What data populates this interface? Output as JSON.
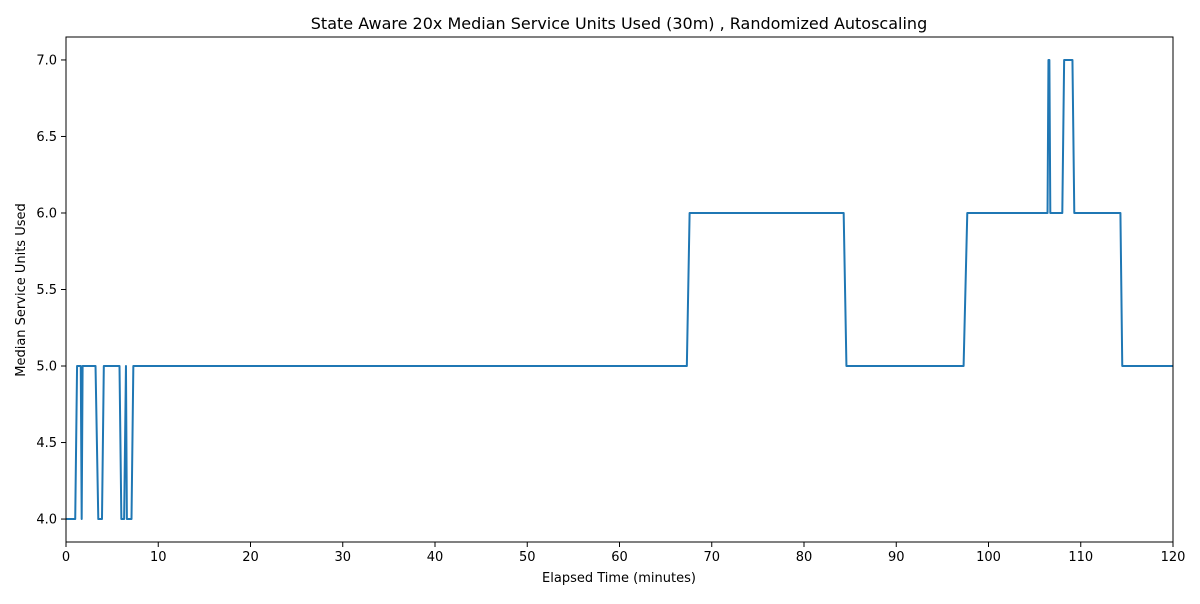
{
  "chart_data": {
    "type": "line",
    "title": "State Aware 20x Median Service Units Used (30m) , Randomized Autoscaling",
    "xlabel": "Elapsed Time (minutes)",
    "ylabel": "Median Service Units Used",
    "xlim": [
      0,
      120
    ],
    "ylim": [
      3.85,
      7.15
    ],
    "xticks": [
      0,
      10,
      20,
      30,
      40,
      50,
      60,
      70,
      80,
      90,
      100,
      110,
      120
    ],
    "yticks": [
      4.0,
      4.5,
      5.0,
      5.5,
      6.0,
      6.5,
      7.0
    ],
    "xtick_labels": [
      "0",
      "10",
      "20",
      "30",
      "40",
      "50",
      "60",
      "70",
      "80",
      "90",
      "100",
      "110",
      "120"
    ],
    "ytick_labels": [
      "4.0",
      "4.5",
      "5.0",
      "5.5",
      "6.0",
      "6.5",
      "7.0"
    ],
    "grid": false,
    "legend": "none",
    "color": "#1f77b4",
    "series": [
      {
        "x": [
          0,
          1.0,
          1.2,
          1.6,
          1.7,
          1.8,
          2.0,
          3.2,
          3.5,
          3.9,
          4.1,
          5.8,
          6.0,
          6.3,
          6.5,
          6.6,
          6.8,
          7.1,
          7.3,
          67.3,
          67.6,
          84.3,
          84.6,
          97.3,
          97.7,
          106.4,
          106.5,
          106.6,
          106.7,
          108.0,
          108.2,
          109.1,
          109.3,
          114.3,
          114.5,
          120
        ],
        "y": [
          4,
          4,
          5,
          5,
          4,
          5,
          5,
          5,
          4,
          4,
          5,
          5,
          4,
          4,
          5,
          4,
          4,
          4,
          5,
          5,
          6,
          6,
          5,
          5,
          6,
          6,
          7,
          7,
          6,
          6,
          7,
          7,
          6,
          6,
          5,
          5
        ]
      }
    ]
  }
}
